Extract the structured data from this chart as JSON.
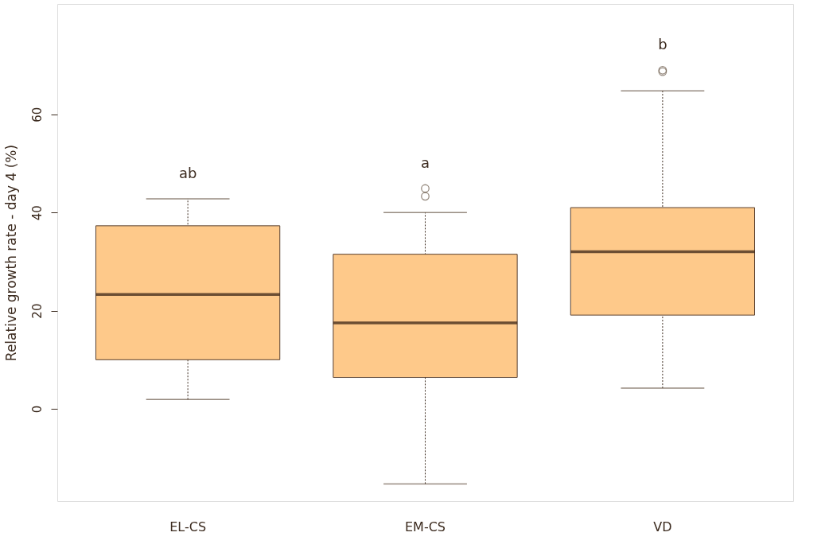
{
  "chart_data": {
    "type": "box",
    "ylabel": "Relative growth rate - day 4 (%)",
    "categories": [
      "EL-CS",
      "EM-CS",
      "VD"
    ],
    "series": [
      {
        "color": "#fec98a",
        "boxes": [
          {
            "low": 1.9,
            "q1": 10.0,
            "median": 23.3,
            "q3": 37.3,
            "high": 42.8
          },
          {
            "low": -15.3,
            "q1": 6.4,
            "median": 17.5,
            "q3": 31.5,
            "high": 40.0,
            "outliers": [
              43.3,
              44.9
            ]
          },
          {
            "low": 4.2,
            "q1": 19.1,
            "median": 32.0,
            "q3": 41.0,
            "high": 64.8,
            "outliers": [
              68.7,
              69.0
            ]
          }
        ]
      }
    ],
    "ylim": [
      -18.8,
      82.5
    ],
    "yticks": [
      0,
      20,
      40,
      60
    ],
    "grid": false,
    "annotations": [
      "ab",
      "a",
      "b"
    ]
  }
}
